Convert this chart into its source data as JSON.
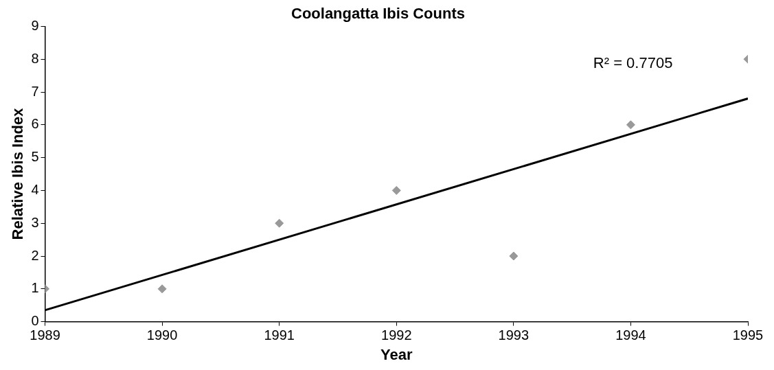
{
  "chart_data": {
    "type": "scatter",
    "title": "Coolangatta Ibis Counts",
    "xlabel": "Year",
    "ylabel": "Relative Ibis Index",
    "x": [
      1989,
      1990,
      1991,
      1992,
      1993,
      1994,
      1995
    ],
    "series": [
      {
        "type": "scatter",
        "color": "#999999",
        "marker": "diamond",
        "values": [
          1,
          1,
          3,
          4,
          2,
          6,
          8
        ]
      },
      {
        "type": "line",
        "color": "#000000",
        "marker": "none",
        "line_style": "solid",
        "x": [
          1989,
          1995
        ],
        "values": [
          0.35,
          6.8
        ]
      }
    ],
    "xlim": [
      1989,
      1995
    ],
    "xticks": [
      1989,
      1990,
      1991,
      1992,
      1993,
      1994,
      1995
    ],
    "ylim": [
      0,
      9
    ],
    "yticks": [
      0,
      1,
      2,
      3,
      4,
      5,
      6,
      7,
      8,
      9
    ],
    "grid": false,
    "legend": false,
    "annotations": [
      "R² = 0.7705"
    ]
  }
}
